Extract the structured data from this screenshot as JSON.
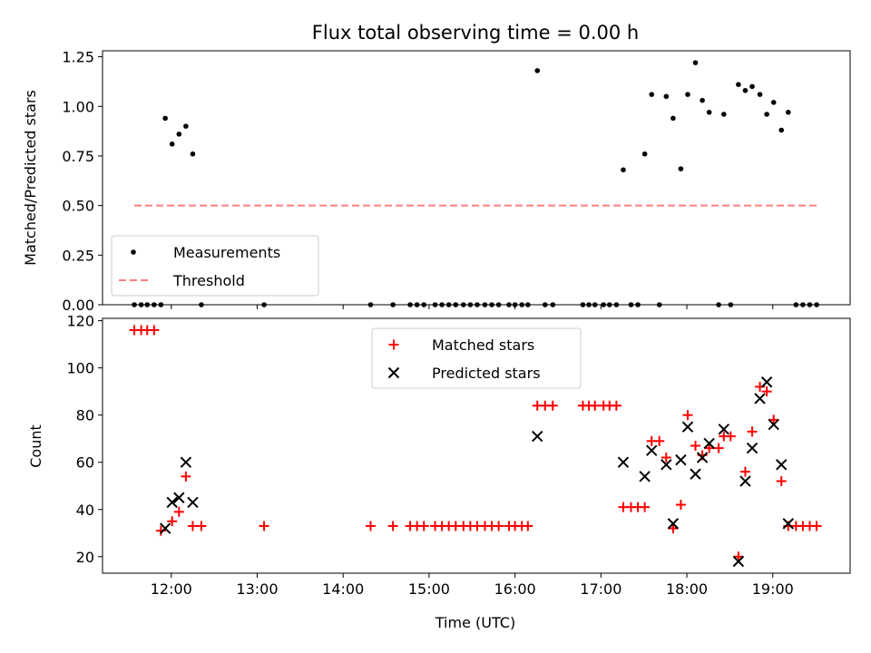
{
  "chart_data": [
    {
      "type": "scatter",
      "title": "Flux total observing time = 0.00 h",
      "xlabel": "",
      "ylabel": "Matched/Predicted stars",
      "xlim": [
        11.2,
        19.9
      ],
      "ylim": [
        0,
        1.28
      ],
      "yticks": [
        {
          "value": 0.0,
          "label": "0.00"
        },
        {
          "value": 0.25,
          "label": "0.25"
        },
        {
          "value": 0.5,
          "label": "0.50"
        },
        {
          "value": 0.75,
          "label": "0.75"
        },
        {
          "value": 1.0,
          "label": "1.00"
        },
        {
          "value": 1.25,
          "label": "1.25"
        }
      ],
      "legend": {
        "position": "lower-left",
        "entries": [
          "Measurements",
          "Threshold"
        ]
      },
      "series": [
        {
          "name": "Measurements",
          "marker": "dot",
          "color": "#000000",
          "points": [
            [
              11.57,
              0
            ],
            [
              11.65,
              0
            ],
            [
              11.72,
              0
            ],
            [
              11.8,
              0
            ],
            [
              11.88,
              0
            ],
            [
              11.93,
              0.94
            ],
            [
              12.01,
              0.81
            ],
            [
              12.09,
              0.86
            ],
            [
              12.17,
              0.9
            ],
            [
              12.25,
              0.76
            ],
            [
              12.35,
              0
            ],
            [
              13.08,
              0
            ],
            [
              14.32,
              0
            ],
            [
              14.58,
              0
            ],
            [
              14.78,
              0
            ],
            [
              14.86,
              0
            ],
            [
              14.94,
              0
            ],
            [
              15.07,
              0
            ],
            [
              15.15,
              0
            ],
            [
              15.23,
              0
            ],
            [
              15.31,
              0
            ],
            [
              15.4,
              0
            ],
            [
              15.48,
              0
            ],
            [
              15.56,
              0
            ],
            [
              15.65,
              0
            ],
            [
              15.73,
              0
            ],
            [
              15.81,
              0
            ],
            [
              15.93,
              0
            ],
            [
              16.0,
              0
            ],
            [
              16.08,
              0
            ],
            [
              16.15,
              0
            ],
            [
              16.26,
              1.18
            ],
            [
              16.35,
              0
            ],
            [
              16.44,
              0
            ],
            [
              16.79,
              0
            ],
            [
              16.86,
              0
            ],
            [
              16.93,
              0
            ],
            [
              17.03,
              0
            ],
            [
              17.1,
              0
            ],
            [
              17.18,
              0
            ],
            [
              17.26,
              0.68
            ],
            [
              17.35,
              0
            ],
            [
              17.43,
              0
            ],
            [
              17.51,
              0.76
            ],
            [
              17.59,
              1.06
            ],
            [
              17.68,
              0
            ],
            [
              17.76,
              1.05
            ],
            [
              17.84,
              0.94
            ],
            [
              17.93,
              0.685
            ],
            [
              18.01,
              1.06
            ],
            [
              18.1,
              1.22
            ],
            [
              18.18,
              1.03
            ],
            [
              18.26,
              0.97
            ],
            [
              18.37,
              0
            ],
            [
              18.43,
              0.96
            ],
            [
              18.51,
              0
            ],
            [
              18.6,
              1.11
            ],
            [
              18.68,
              1.08
            ],
            [
              18.76,
              1.1
            ],
            [
              18.85,
              1.06
            ],
            [
              18.93,
              0.96
            ],
            [
              19.01,
              1.02
            ],
            [
              19.1,
              0.88
            ],
            [
              19.18,
              0.97
            ],
            [
              19.27,
              0
            ],
            [
              19.35,
              0
            ],
            [
              19.43,
              0
            ],
            [
              19.51,
              0
            ]
          ]
        },
        {
          "name": "Threshold",
          "marker": "dashed-line",
          "color": "#ff7f7f",
          "points": [
            [
              11.57,
              0.5
            ],
            [
              19.51,
              0.5
            ]
          ]
        }
      ]
    },
    {
      "type": "scatter",
      "title": "",
      "xlabel": "Time (UTC)",
      "ylabel": "Count",
      "xlim": [
        11.2,
        19.9
      ],
      "ylim": [
        13,
        121
      ],
      "yticks": [
        {
          "value": 20,
          "label": "20"
        },
        {
          "value": 40,
          "label": "40"
        },
        {
          "value": 60,
          "label": "60"
        },
        {
          "value": 80,
          "label": "80"
        },
        {
          "value": 100,
          "label": "100"
        },
        {
          "value": 120,
          "label": "120"
        }
      ],
      "xticks": [
        {
          "value": 12,
          "label": "12:00"
        },
        {
          "value": 13,
          "label": "13:00"
        },
        {
          "value": 14,
          "label": "14:00"
        },
        {
          "value": 15,
          "label": "15:00"
        },
        {
          "value": 16,
          "label": "16:00"
        },
        {
          "value": 17,
          "label": "17:00"
        },
        {
          "value": 18,
          "label": "18:00"
        },
        {
          "value": 19,
          "label": "19:00"
        }
      ],
      "legend": {
        "position": "upper-center",
        "entries": [
          "Matched stars",
          "Predicted stars"
        ]
      },
      "series": [
        {
          "name": "Matched stars",
          "marker": "plus",
          "color": "#ff0000",
          "points": [
            [
              11.57,
              116
            ],
            [
              11.65,
              116
            ],
            [
              11.72,
              116
            ],
            [
              11.8,
              116
            ],
            [
              11.88,
              31
            ],
            [
              12.01,
              35
            ],
            [
              12.09,
              39
            ],
            [
              12.17,
              54
            ],
            [
              12.25,
              33
            ],
            [
              12.35,
              33
            ],
            [
              13.08,
              33
            ],
            [
              14.32,
              33
            ],
            [
              14.58,
              33
            ],
            [
              14.78,
              33
            ],
            [
              14.86,
              33
            ],
            [
              14.94,
              33
            ],
            [
              15.07,
              33
            ],
            [
              15.15,
              33
            ],
            [
              15.23,
              33
            ],
            [
              15.31,
              33
            ],
            [
              15.4,
              33
            ],
            [
              15.48,
              33
            ],
            [
              15.56,
              33
            ],
            [
              15.65,
              33
            ],
            [
              15.73,
              33
            ],
            [
              15.81,
              33
            ],
            [
              15.93,
              33
            ],
            [
              16.0,
              33
            ],
            [
              16.08,
              33
            ],
            [
              16.15,
              33
            ],
            [
              16.26,
              84
            ],
            [
              16.35,
              84
            ],
            [
              16.44,
              84
            ],
            [
              16.79,
              84
            ],
            [
              16.86,
              84
            ],
            [
              16.93,
              84
            ],
            [
              17.03,
              84
            ],
            [
              17.1,
              84
            ],
            [
              17.18,
              84
            ],
            [
              17.26,
              41
            ],
            [
              17.35,
              41
            ],
            [
              17.43,
              41
            ],
            [
              17.51,
              41
            ],
            [
              17.59,
              69
            ],
            [
              17.68,
              69
            ],
            [
              17.76,
              62
            ],
            [
              17.84,
              32
            ],
            [
              17.93,
              42
            ],
            [
              18.01,
              80
            ],
            [
              18.1,
              67
            ],
            [
              18.18,
              63
            ],
            [
              18.26,
              66
            ],
            [
              18.37,
              66
            ],
            [
              18.43,
              71
            ],
            [
              18.51,
              71
            ],
            [
              18.6,
              20
            ],
            [
              18.68,
              56
            ],
            [
              18.76,
              73
            ],
            [
              18.85,
              92
            ],
            [
              18.93,
              90
            ],
            [
              19.01,
              78
            ],
            [
              19.1,
              52
            ],
            [
              19.18,
              33
            ],
            [
              19.27,
              33
            ],
            [
              19.35,
              33
            ],
            [
              19.43,
              33
            ],
            [
              19.51,
              33
            ]
          ]
        },
        {
          "name": "Predicted stars",
          "marker": "x",
          "color": "#000000",
          "points": [
            [
              11.93,
              32
            ],
            [
              12.01,
              43
            ],
            [
              12.09,
              45
            ],
            [
              12.17,
              60
            ],
            [
              12.25,
              43
            ],
            [
              16.26,
              71
            ],
            [
              17.26,
              60
            ],
            [
              17.51,
              54
            ],
            [
              17.59,
              65
            ],
            [
              17.76,
              59
            ],
            [
              17.84,
              34
            ],
            [
              17.93,
              61
            ],
            [
              18.01,
              75
            ],
            [
              18.1,
              55
            ],
            [
              18.18,
              62
            ],
            [
              18.26,
              68
            ],
            [
              18.43,
              74
            ],
            [
              18.6,
              18
            ],
            [
              18.68,
              52
            ],
            [
              18.76,
              66
            ],
            [
              18.85,
              87
            ],
            [
              18.93,
              94
            ],
            [
              19.01,
              76
            ],
            [
              19.1,
              59
            ],
            [
              19.18,
              34
            ]
          ]
        }
      ]
    }
  ]
}
